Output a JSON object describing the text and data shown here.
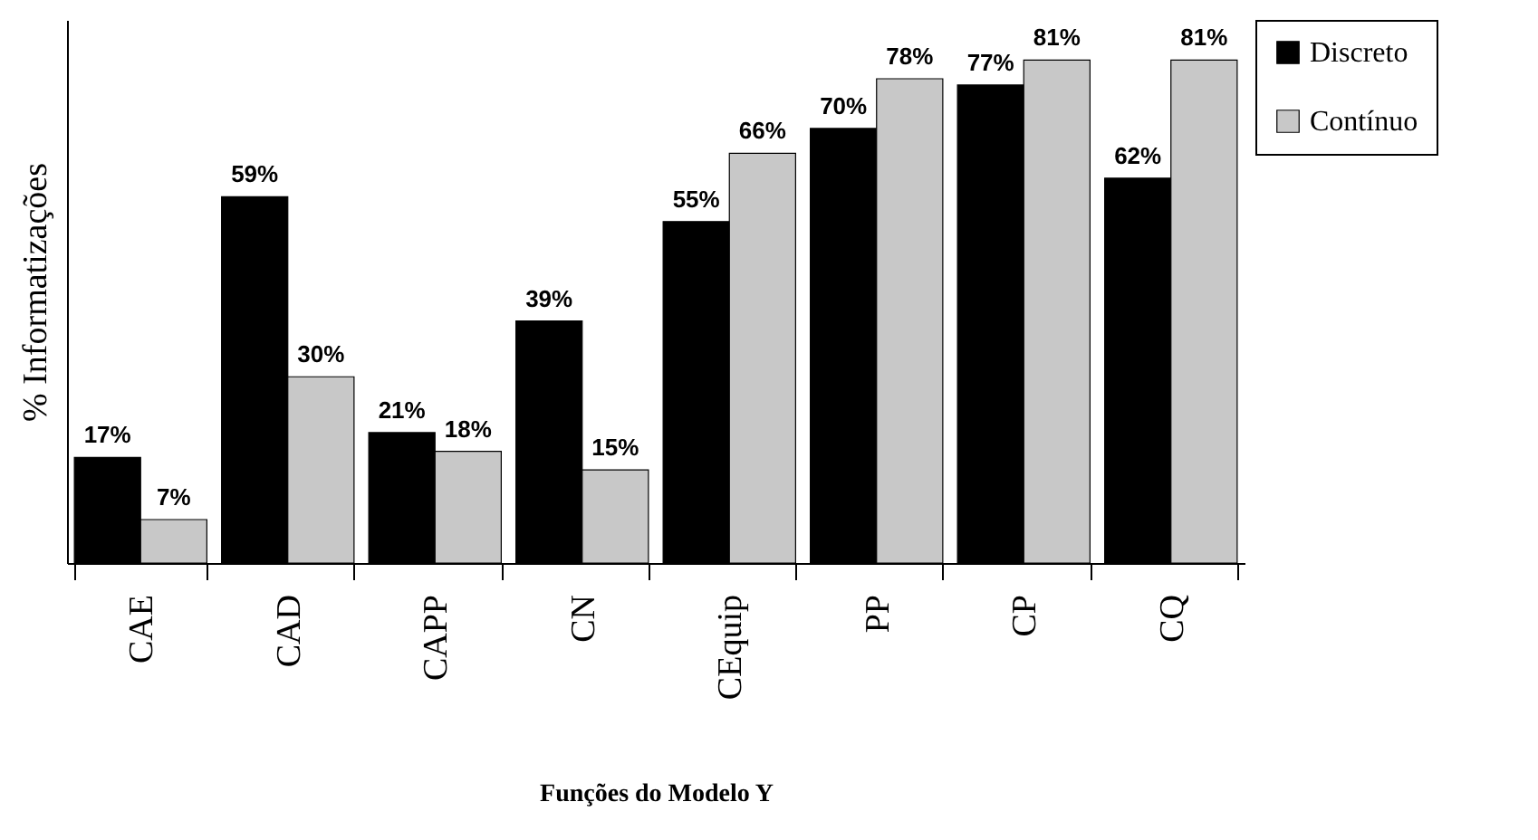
{
  "chart_data": {
    "type": "bar",
    "xlabel": "Funções do Modelo Y",
    "ylabel": "% Informatizações",
    "categories": [
      "CAE",
      "CAD",
      "CAPP",
      "CN",
      "CEquip",
      "PP",
      "CP",
      "CQ"
    ],
    "series": [
      {
        "name": "Discreto",
        "color": "#000000",
        "values": [
          17,
          59,
          21,
          39,
          55,
          70,
          77,
          62
        ],
        "value_labels": [
          "17%",
          "59%",
          "21%",
          "39%",
          "55%",
          "70%",
          "77%",
          "62%"
        ]
      },
      {
        "name": "Contínuo",
        "color": "#c8c8c8",
        "values": [
          7,
          30,
          18,
          15,
          66,
          78,
          81,
          81
        ],
        "value_labels": [
          "7%",
          "30%",
          "18%",
          "15%",
          "66%",
          "78%",
          "81%",
          "81%"
        ]
      }
    ],
    "legend": "right",
    "grid": false
  }
}
